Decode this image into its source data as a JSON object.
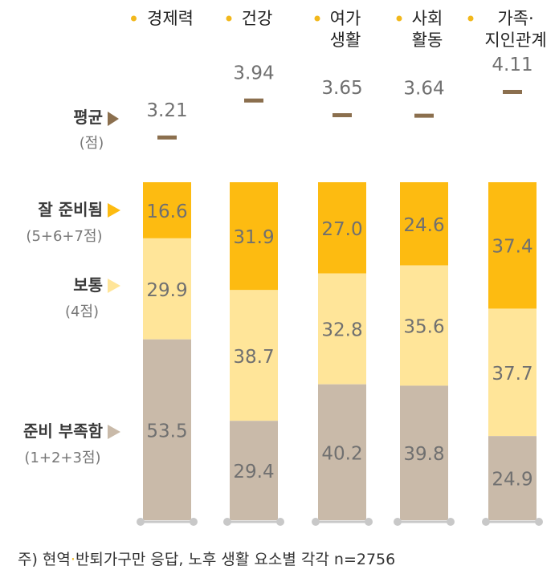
{
  "chart_data": {
    "type": "bar",
    "stacked": true,
    "categories": [
      "경제력",
      "건강",
      "여가 생활",
      "사회 활동",
      "가족·지인관계"
    ],
    "category_lines": [
      [
        "경제력"
      ],
      [
        "건강"
      ],
      [
        "여가",
        "생활"
      ],
      [
        "사회",
        "활동"
      ],
      [
        "가족·",
        "지인관계"
      ]
    ],
    "average": {
      "label": "평균",
      "unit": "(점)",
      "values": [
        3.21,
        3.94,
        3.65,
        3.64,
        4.11
      ]
    },
    "series": [
      {
        "name": "잘 준비됨",
        "sub": "(5+6+7점)",
        "color": "#fdbb11",
        "values": [
          16.6,
          31.9,
          27.0,
          24.6,
          37.4
        ]
      },
      {
        "name": "보통",
        "sub": "(4점)",
        "color": "#ffe599",
        "values": [
          29.9,
          38.7,
          32.8,
          35.6,
          37.7
        ]
      },
      {
        "name": "준비 부족함",
        "sub": "(1+2+3점)",
        "color": "#c9baa9",
        "values": [
          53.5,
          29.4,
          40.2,
          39.8,
          24.9
        ]
      }
    ],
    "ylim": [
      0,
      100
    ],
    "colors": {
      "bullet": "#f2b81c",
      "avg_marker": "#8b6f4e",
      "value_text": "#707070",
      "label_text": "#3a3a3a",
      "baseline": "#c8c8c8"
    }
  },
  "footnote": {
    "prefix": "주) 현역",
    "dot": "·",
    "text": "반퇴가구만 응답, 노후 생활 요소별 각각 n=2756"
  }
}
